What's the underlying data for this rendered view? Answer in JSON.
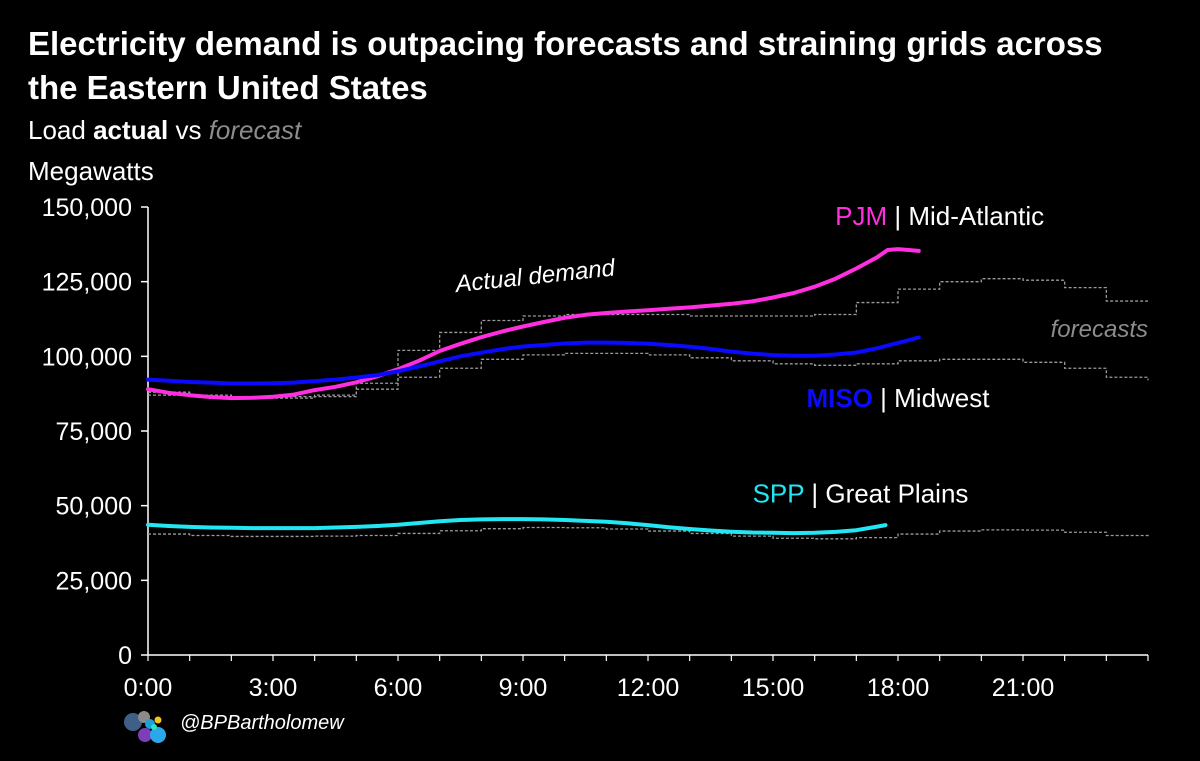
{
  "title": "Electricity demand is outpacing forecasts and straining grids across the Eastern United States",
  "subtitle": {
    "prefix": "Load ",
    "bold": "actual",
    "middle": " vs ",
    "italic": "forecast"
  },
  "credit": {
    "handle": "@BPBartholomew"
  },
  "colors": {
    "background": "#000000",
    "pjm": "#ff2ee0",
    "miso": "#0a0aff",
    "spp": "#22e6f2",
    "forecast": "#9a9a9a",
    "axis": "#ffffff"
  },
  "chart_data": {
    "type": "line",
    "title": "Electricity demand is outpacing forecasts and straining grids across the Eastern United States",
    "subtitle": "Load actual vs forecast",
    "ylabel": "Megawatts",
    "xlim": [
      0,
      24
    ],
    "ylim": [
      0,
      150000
    ],
    "x_ticks": [
      "0:00",
      "3:00",
      "6:00",
      "9:00",
      "12:00",
      "15:00",
      "18:00",
      "21:00"
    ],
    "x_tick_values": [
      0,
      3,
      6,
      9,
      12,
      15,
      18,
      21
    ],
    "y_ticks": [
      "0",
      "25,000",
      "50,000",
      "75,000",
      "100,000",
      "125,000",
      "150,000"
    ],
    "y_tick_values": [
      0,
      25000,
      50000,
      75000,
      100000,
      125000,
      150000
    ],
    "grid": false,
    "legend": "inline labels",
    "annotations": {
      "actual_label": {
        "text": "Actual demand",
        "x": 7.4,
        "y": 121500
      },
      "forecast_label": {
        "text": "forecasts",
        "x": 24,
        "y": 106500
      }
    },
    "series": [
      {
        "name": "PJM",
        "region": "Mid-Atlantic",
        "kind": "actual",
        "color": "#ff2ee0",
        "label_x": 19.0,
        "label_y": 144000,
        "points": [
          [
            0,
            89000
          ],
          [
            0.5,
            87800
          ],
          [
            1,
            87000
          ],
          [
            1.5,
            86400
          ],
          [
            2,
            86000
          ],
          [
            2.5,
            86100
          ],
          [
            3,
            86500
          ],
          [
            3.5,
            87200
          ],
          [
            4,
            88700
          ],
          [
            4.5,
            89800
          ],
          [
            5,
            91300
          ],
          [
            5.5,
            93300
          ],
          [
            6,
            95700
          ],
          [
            6.5,
            98500
          ],
          [
            7,
            101800
          ],
          [
            7.5,
            104200
          ],
          [
            8,
            106400
          ],
          [
            8.5,
            108300
          ],
          [
            9,
            110000
          ],
          [
            9.5,
            111500
          ],
          [
            10,
            112900
          ],
          [
            10.5,
            113900
          ],
          [
            11,
            114500
          ],
          [
            11.5,
            115000
          ],
          [
            12,
            115400
          ],
          [
            12.5,
            115900
          ],
          [
            13,
            116400
          ],
          [
            13.5,
            117000
          ],
          [
            14,
            117600
          ],
          [
            14.5,
            118400
          ],
          [
            15,
            119700
          ],
          [
            15.5,
            121200
          ],
          [
            16,
            123300
          ],
          [
            16.5,
            126000
          ],
          [
            17,
            129400
          ],
          [
            17.5,
            133200
          ],
          [
            17.75,
            135600
          ],
          [
            18,
            135900
          ],
          [
            18.25,
            135600
          ],
          [
            18.5,
            135300
          ]
        ]
      },
      {
        "name": "MISO",
        "region": "Midwest",
        "kind": "actual",
        "color": "#0a0aff",
        "label_x": 18.0,
        "label_y": 83000,
        "points": [
          [
            0,
            92200
          ],
          [
            0.5,
            91800
          ],
          [
            1,
            91400
          ],
          [
            1.5,
            91200
          ],
          [
            2,
            90900
          ],
          [
            2.5,
            90900
          ],
          [
            3,
            91000
          ],
          [
            3.5,
            91200
          ],
          [
            4,
            91700
          ],
          [
            4.5,
            92200
          ],
          [
            5,
            92900
          ],
          [
            5.5,
            93700
          ],
          [
            6,
            95000
          ],
          [
            6.5,
            96600
          ],
          [
            7,
            98300
          ],
          [
            7.5,
            100000
          ],
          [
            8,
            101200
          ],
          [
            8.5,
            102400
          ],
          [
            9,
            103300
          ],
          [
            9.5,
            103800
          ],
          [
            10,
            104300
          ],
          [
            10.5,
            104600
          ],
          [
            11,
            104600
          ],
          [
            11.5,
            104500
          ],
          [
            12,
            104200
          ],
          [
            12.5,
            103800
          ],
          [
            13,
            103200
          ],
          [
            13.5,
            102500
          ],
          [
            14,
            101600
          ],
          [
            14.5,
            100900
          ],
          [
            15,
            100400
          ],
          [
            15.5,
            100200
          ],
          [
            16,
            100200
          ],
          [
            16.5,
            100600
          ],
          [
            17,
            101300
          ],
          [
            17.5,
            102700
          ],
          [
            18,
            104500
          ],
          [
            18.5,
            106300
          ]
        ]
      },
      {
        "name": "SPP",
        "region": "Great Plains",
        "kind": "actual",
        "color": "#22e6f2",
        "label_x": 17.1,
        "label_y": 51000,
        "points": [
          [
            0,
            43600
          ],
          [
            0.5,
            43200
          ],
          [
            1,
            42900
          ],
          [
            1.5,
            42700
          ],
          [
            2,
            42600
          ],
          [
            2.5,
            42500
          ],
          [
            3,
            42500
          ],
          [
            3.5,
            42500
          ],
          [
            4,
            42500
          ],
          [
            4.5,
            42700
          ],
          [
            5,
            42900
          ],
          [
            5.5,
            43200
          ],
          [
            6,
            43600
          ],
          [
            6.5,
            44200
          ],
          [
            7,
            44800
          ],
          [
            7.5,
            45200
          ],
          [
            8,
            45400
          ],
          [
            8.5,
            45500
          ],
          [
            9,
            45500
          ],
          [
            9.5,
            45400
          ],
          [
            10,
            45200
          ],
          [
            10.5,
            44900
          ],
          [
            11,
            44600
          ],
          [
            11.5,
            44100
          ],
          [
            12,
            43500
          ],
          [
            12.5,
            42800
          ],
          [
            13,
            42200
          ],
          [
            13.5,
            41700
          ],
          [
            14,
            41300
          ],
          [
            14.5,
            41000
          ],
          [
            15,
            40900
          ],
          [
            15.5,
            40800
          ],
          [
            16,
            40900
          ],
          [
            16.5,
            41200
          ],
          [
            17,
            41800
          ],
          [
            17.5,
            43000
          ],
          [
            17.7,
            43500
          ]
        ]
      },
      {
        "name": "PJM forecast",
        "kind": "forecast",
        "color": "#9a9a9a",
        "points": [
          [
            0,
            88000
          ],
          [
            1,
            87000
          ],
          [
            2,
            86500
          ],
          [
            3,
            86500
          ],
          [
            4,
            87000
          ],
          [
            5,
            91000
          ],
          [
            6,
            102000
          ],
          [
            7,
            108000
          ],
          [
            8,
            112000
          ],
          [
            9,
            113500
          ],
          [
            10,
            114000
          ],
          [
            11,
            114000
          ],
          [
            12,
            114000
          ],
          [
            13,
            113500
          ],
          [
            14,
            113500
          ],
          [
            15,
            113500
          ],
          [
            16,
            114000
          ],
          [
            17,
            118000
          ],
          [
            18,
            122500
          ],
          [
            19,
            125000
          ],
          [
            20,
            126000
          ],
          [
            21,
            125500
          ],
          [
            22,
            123000
          ],
          [
            23,
            118500
          ],
          [
            24,
            118500
          ]
        ]
      },
      {
        "name": "MISO forecast",
        "kind": "forecast",
        "color": "#9a9a9a",
        "points": [
          [
            0,
            87000
          ],
          [
            1,
            86500
          ],
          [
            2,
            86000
          ],
          [
            3,
            86000
          ],
          [
            4,
            86500
          ],
          [
            5,
            89000
          ],
          [
            6,
            93000
          ],
          [
            7,
            96000
          ],
          [
            8,
            99000
          ],
          [
            9,
            100500
          ],
          [
            10,
            101000
          ],
          [
            11,
            101000
          ],
          [
            12,
            100500
          ],
          [
            13,
            99500
          ],
          [
            14,
            98500
          ],
          [
            15,
            97500
          ],
          [
            16,
            97000
          ],
          [
            17,
            97500
          ],
          [
            18,
            98500
          ],
          [
            19,
            99000
          ],
          [
            20,
            99000
          ],
          [
            21,
            98000
          ],
          [
            22,
            96000
          ],
          [
            23,
            93000
          ],
          [
            24,
            92000
          ]
        ]
      },
      {
        "name": "SPP forecast",
        "kind": "forecast",
        "color": "#9a9a9a",
        "points": [
          [
            0,
            40500
          ],
          [
            1,
            40000
          ],
          [
            2,
            39700
          ],
          [
            3,
            39700
          ],
          [
            4,
            39800
          ],
          [
            5,
            40000
          ],
          [
            6,
            40700
          ],
          [
            7,
            41600
          ],
          [
            8,
            42300
          ],
          [
            9,
            42700
          ],
          [
            10,
            42600
          ],
          [
            11,
            42200
          ],
          [
            12,
            41500
          ],
          [
            13,
            40700
          ],
          [
            14,
            39800
          ],
          [
            15,
            39100
          ],
          [
            16,
            38900
          ],
          [
            17,
            39300
          ],
          [
            18,
            40500
          ],
          [
            19,
            41500
          ],
          [
            20,
            41900
          ],
          [
            21,
            41800
          ],
          [
            22,
            41100
          ],
          [
            23,
            40000
          ],
          [
            24,
            39400
          ]
        ]
      }
    ]
  }
}
